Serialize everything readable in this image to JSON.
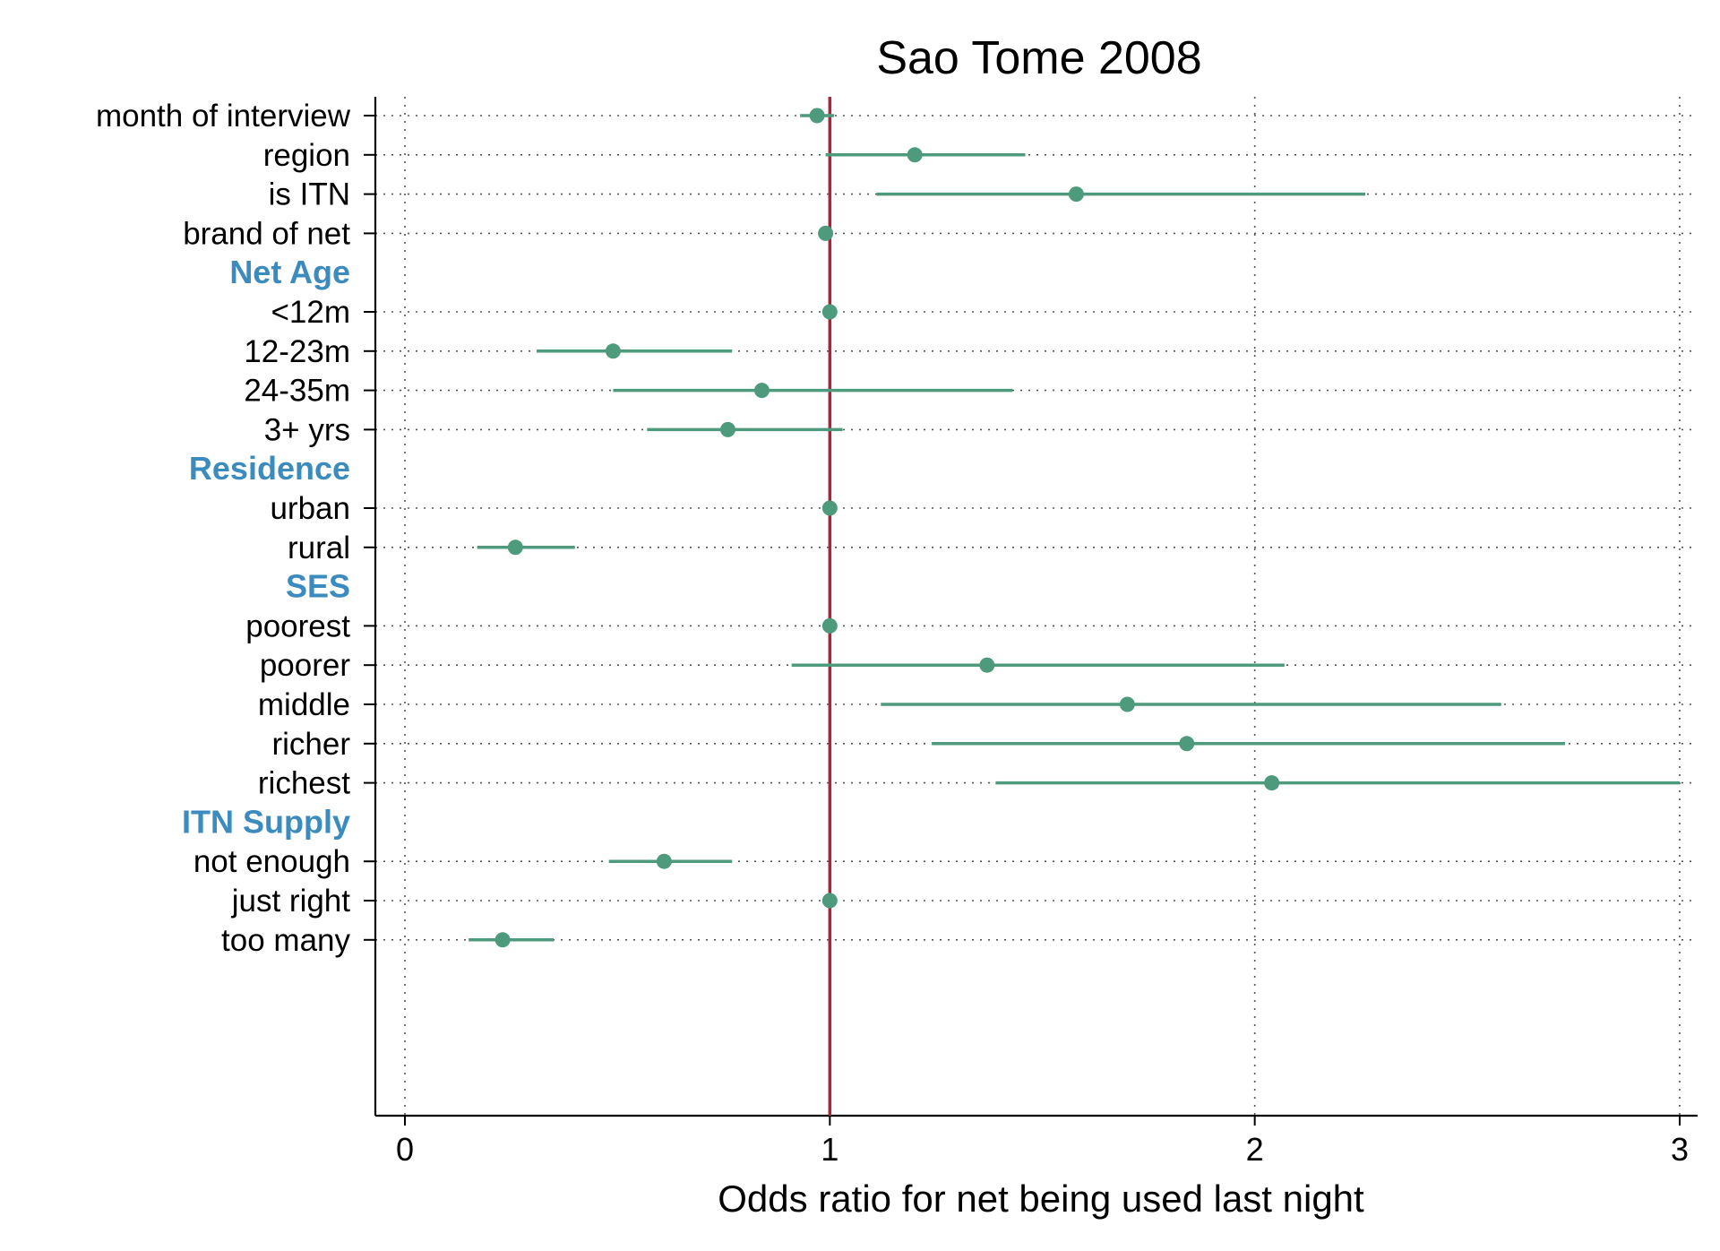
{
  "chart_data": {
    "type": "forest",
    "title": "Sao Tome 2008",
    "xlabel": "Odds ratio for net being used last night",
    "xlim": [
      0,
      3
    ],
    "xticks": [
      0,
      1,
      2,
      3
    ],
    "reference_line": 1,
    "grid": "dotted",
    "rows": [
      {
        "label": "month of interview",
        "or": 0.97,
        "lo": 0.93,
        "hi": 1.01
      },
      {
        "label": "region",
        "or": 1.2,
        "lo": 0.99,
        "hi": 1.46
      },
      {
        "label": "is ITN",
        "or": 1.58,
        "lo": 1.11,
        "hi": 2.26
      },
      {
        "label": "brand of net",
        "or": 0.99
      },
      {
        "label": "Net Age",
        "header": true
      },
      {
        "label": "<12m",
        "or": 1.0
      },
      {
        "label": "12-23m",
        "or": 0.49,
        "lo": 0.31,
        "hi": 0.77
      },
      {
        "label": "24-35m",
        "or": 0.84,
        "lo": 0.49,
        "hi": 1.43
      },
      {
        "label": "3+ yrs",
        "or": 0.76,
        "lo": 0.57,
        "hi": 1.03
      },
      {
        "label": "Residence",
        "header": true
      },
      {
        "label": "urban",
        "or": 1.0
      },
      {
        "label": "rural",
        "or": 0.26,
        "lo": 0.17,
        "hi": 0.4
      },
      {
        "label": "SES",
        "header": true
      },
      {
        "label": "poorest",
        "or": 1.0
      },
      {
        "label": "poorer",
        "or": 1.37,
        "lo": 0.91,
        "hi": 2.07
      },
      {
        "label": "middle",
        "or": 1.7,
        "lo": 1.12,
        "hi": 2.58
      },
      {
        "label": "richer",
        "or": 1.84,
        "lo": 1.24,
        "hi": 2.73
      },
      {
        "label": "richest",
        "or": 2.04,
        "lo": 1.39,
        "hi": 3.0
      },
      {
        "label": "ITN Supply",
        "header": true
      },
      {
        "label": "not enough",
        "or": 0.61,
        "lo": 0.48,
        "hi": 0.77
      },
      {
        "label": "just right",
        "or": 1.0
      },
      {
        "label": "too many",
        "or": 0.23,
        "lo": 0.15,
        "hi": 0.35
      }
    ]
  },
  "colors": {
    "marker": "#4d9a7c",
    "reference_line": "#a8253a",
    "header_text": "#3b8bbf",
    "text": "#000000",
    "grid": "#555555"
  }
}
